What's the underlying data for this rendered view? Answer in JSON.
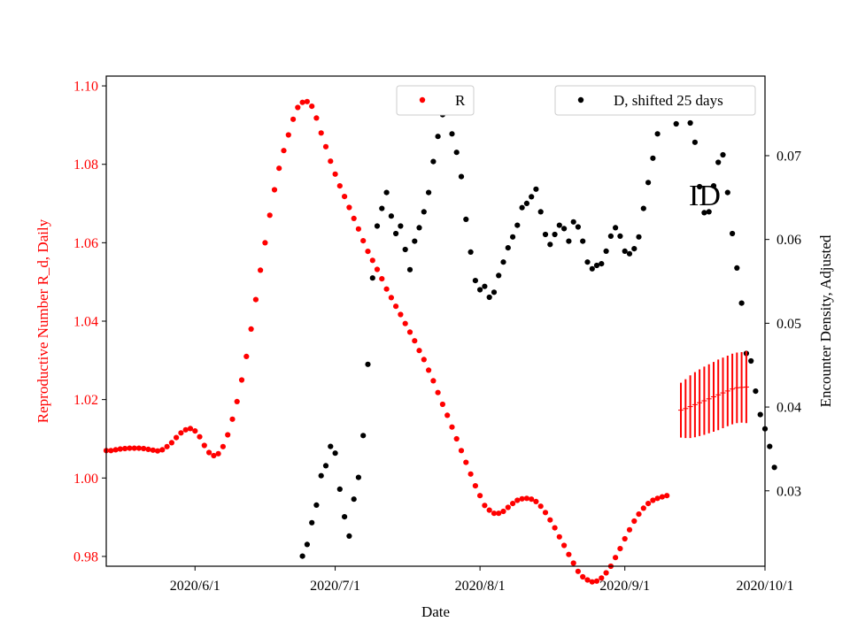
{
  "chart_data": {
    "type": "scatter",
    "xlabel": "Date",
    "ylabel_left": "Reproductive Number R_d, Daily",
    "ylabel_right": "Encounter Density, Adjusted",
    "annotation": "ID",
    "colors": {
      "left": "#ff0000",
      "right": "#000000"
    },
    "legend": [
      {
        "label": "R",
        "color": "#ff0000",
        "placement": "top-center"
      },
      {
        "label": "D, shifted 25 days",
        "color": "#000000",
        "placement": "top-right"
      }
    ],
    "x_ticks": [
      "2020/6/1",
      "2020/7/1",
      "2020/8/1",
      "2020/9/1",
      "2020/10/1"
    ],
    "x_range": [
      "2020-05-13",
      "2020-10-01"
    ],
    "y_left_ticks": [
      "0.98",
      "1.00",
      "1.02",
      "1.04",
      "1.06",
      "1.08",
      "1.10"
    ],
    "y_left_range": [
      0.9775,
      1.1025
    ],
    "y_right_ticks": [
      "0.03",
      "0.04",
      "0.05",
      "0.06",
      "0.07"
    ],
    "y_right_range": [
      0.021,
      0.0795
    ],
    "series": [
      {
        "name": "R",
        "axis": "left",
        "color": "#ff0000",
        "start": "2020-05-13",
        "values": [
          1.007,
          1.007,
          1.0072,
          1.0074,
          1.0075,
          1.0076,
          1.0076,
          1.0076,
          1.0075,
          1.0073,
          1.0071,
          1.0069,
          1.0072,
          1.008,
          1.009,
          1.0103,
          1.0115,
          1.0123,
          1.0126,
          1.012,
          1.0105,
          1.0083,
          1.0065,
          1.0057,
          1.0062,
          1.008,
          1.011,
          1.015,
          1.0195,
          1.025,
          1.031,
          1.038,
          1.0455,
          1.053,
          1.06,
          1.067,
          1.0735,
          1.079,
          1.0835,
          1.0875,
          1.0915,
          1.0945,
          1.0958,
          1.096,
          1.0948,
          1.0918,
          1.088,
          1.0845,
          1.0808,
          1.0775,
          1.0745,
          1.0718,
          1.069,
          1.0662,
          1.0635,
          1.0605,
          1.0578,
          1.0555,
          1.0532,
          1.0508,
          1.0482,
          1.046,
          1.0438,
          1.0417,
          1.0394,
          1.0372,
          1.035,
          1.0325,
          1.0302,
          1.0275,
          1.0248,
          1.0218,
          1.0188,
          1.016,
          1.013,
          1.01,
          1.007,
          1.004,
          1.001,
          0.998,
          0.9955,
          0.993,
          0.9918,
          0.991,
          0.991,
          0.9915,
          0.9925,
          0.9935,
          0.9943,
          0.9947,
          0.9948,
          0.9946,
          0.994,
          0.9928,
          0.9912,
          0.9893,
          0.9873,
          0.985,
          0.9828,
          0.9805,
          0.9783,
          0.9762,
          0.9748,
          0.974,
          0.9735,
          0.9737,
          0.9745,
          0.9758,
          0.9775,
          0.9797,
          0.982,
          0.9845,
          0.9868,
          0.989,
          0.9908,
          0.9923,
          0.9935,
          0.9943,
          0.9948,
          0.9952,
          0.9955
        ]
      },
      {
        "name": "D, shifted 25 days",
        "axis": "right",
        "color": "#000000",
        "start": "2020-06-24",
        "values": [
          0.0222,
          0.0236,
          0.0262,
          0.0283,
          0.0318,
          0.033,
          0.0353,
          0.0345,
          0.0302,
          0.0269,
          0.0246,
          0.029,
          0.0316,
          0.0366,
          0.0451,
          0.0554,
          0.0616,
          0.0637,
          0.0656,
          0.0628,
          0.0607,
          0.0616,
          0.0588,
          0.0564,
          0.0598,
          0.0614,
          0.0633,
          0.0656,
          0.0693,
          0.0723,
          0.0749,
          0.0753,
          0.0726,
          0.0704,
          0.0675,
          0.0624,
          0.0585,
          0.0551,
          0.054,
          0.0544,
          0.0531,
          0.0537,
          0.0557,
          0.0573,
          0.059,
          0.0603,
          0.0617,
          0.0638,
          0.0643,
          0.0651,
          0.066,
          0.0633,
          0.0606,
          0.0594,
          0.0606,
          0.0617,
          0.0613,
          0.0598,
          0.0621,
          0.0615,
          0.0598,
          0.0573,
          0.0565,
          0.0569,
          0.0571,
          0.0586,
          0.0604,
          0.0614,
          0.0604,
          0.0586,
          0.0583,
          0.0589,
          0.0603,
          0.0637,
          0.0668,
          0.0697,
          0.0726,
          0.0755,
          0.0761,
          0.076,
          0.0738,
          0.0757,
          0.0775,
          0.0739,
          0.0716,
          0.0663,
          0.0632,
          0.0633,
          0.0664,
          0.0692,
          0.0701,
          0.0656,
          0.0607,
          0.0566,
          0.0524,
          0.0464,
          0.0455,
          0.0419,
          0.0391,
          0.0374,
          0.0353,
          0.0328
        ]
      }
    ],
    "error_bars": {
      "color": "#ff0000",
      "start": "2020-09-13",
      "values": [
        1.0173,
        1.0177,
        1.0182,
        1.0187,
        1.0192,
        1.0197,
        1.0202,
        1.0207,
        1.0212,
        1.0217,
        1.0222,
        1.0227,
        1.023,
        1.0231,
        1.0232
      ],
      "errors": [
        0.007,
        0.0075,
        0.008,
        0.0083,
        0.0085,
        0.0087,
        0.0088,
        0.0089,
        0.009,
        0.009,
        0.009,
        0.009,
        0.009,
        0.009,
        0.0092
      ]
    }
  }
}
